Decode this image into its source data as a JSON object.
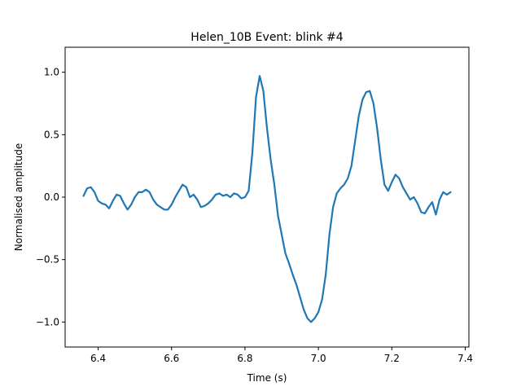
{
  "chart_data": {
    "type": "line",
    "title": "Helen_10B Event: blink #4",
    "xlabel": "Time (s)",
    "ylabel": "Normalised amplitude",
    "xlim": [
      6.31,
      7.41
    ],
    "ylim": [
      -1.2,
      1.2
    ],
    "grid": false,
    "x_ticks": [
      {
        "value": 6.4,
        "label": "6.4"
      },
      {
        "value": 6.6,
        "label": "6.6"
      },
      {
        "value": 6.8,
        "label": "6.8"
      },
      {
        "value": 7.0,
        "label": "7.0"
      },
      {
        "value": 7.2,
        "label": "7.2"
      },
      {
        "value": 7.4,
        "label": "7.4"
      }
    ],
    "y_ticks": [
      {
        "value": -1.0,
        "label": "−1.0"
      },
      {
        "value": -0.5,
        "label": "−0.5"
      },
      {
        "value": 0.0,
        "label": "0.0"
      },
      {
        "value": 0.5,
        "label": "0.5"
      },
      {
        "value": 1.0,
        "label": "1.0"
      }
    ],
    "series": [
      {
        "color": "#1f77b4",
        "x": [
          6.36,
          6.37,
          6.38,
          6.39,
          6.4,
          6.41,
          6.42,
          6.43,
          6.44,
          6.45,
          6.46,
          6.47,
          6.48,
          6.49,
          6.5,
          6.51,
          6.52,
          6.53,
          6.54,
          6.55,
          6.56,
          6.57,
          6.58,
          6.59,
          6.6,
          6.61,
          6.62,
          6.63,
          6.64,
          6.65,
          6.66,
          6.67,
          6.68,
          6.69,
          6.7,
          6.71,
          6.72,
          6.73,
          6.74,
          6.75,
          6.76,
          6.77,
          6.78,
          6.79,
          6.8,
          6.81,
          6.82,
          6.83,
          6.84,
          6.85,
          6.86,
          6.87,
          6.88,
          6.89,
          6.9,
          6.91,
          6.92,
          6.93,
          6.94,
          6.95,
          6.96,
          6.97,
          6.98,
          6.99,
          7.0,
          7.01,
          7.02,
          7.03,
          7.04,
          7.05,
          7.06,
          7.07,
          7.08,
          7.09,
          7.1,
          7.11,
          7.12,
          7.13,
          7.14,
          7.15,
          7.16,
          7.17,
          7.18,
          7.19,
          7.2,
          7.21,
          7.22,
          7.23,
          7.24,
          7.25,
          7.26,
          7.27,
          7.28,
          7.29,
          7.3,
          7.31,
          7.32,
          7.33,
          7.34,
          7.35,
          7.36
        ],
        "y": [
          0.01,
          0.07,
          0.08,
          0.04,
          -0.03,
          -0.05,
          -0.06,
          -0.09,
          -0.03,
          0.02,
          0.01,
          -0.05,
          -0.1,
          -0.06,
          0.0,
          0.04,
          0.04,
          0.06,
          0.04,
          -0.02,
          -0.06,
          -0.08,
          -0.1,
          -0.1,
          -0.06,
          0.0,
          0.05,
          0.1,
          0.08,
          0.0,
          0.02,
          -0.02,
          -0.08,
          -0.07,
          -0.05,
          -0.02,
          0.02,
          0.03,
          0.01,
          0.02,
          0.0,
          0.03,
          0.02,
          -0.01,
          0.0,
          0.05,
          0.35,
          0.8,
          0.97,
          0.85,
          0.55,
          0.3,
          0.1,
          -0.15,
          -0.3,
          -0.45,
          -0.53,
          -0.62,
          -0.7,
          -0.8,
          -0.9,
          -0.97,
          -1.0,
          -0.97,
          -0.92,
          -0.82,
          -0.62,
          -0.3,
          -0.08,
          0.03,
          0.07,
          0.1,
          0.15,
          0.25,
          0.45,
          0.65,
          0.78,
          0.84,
          0.85,
          0.75,
          0.55,
          0.3,
          0.1,
          0.05,
          0.12,
          0.18,
          0.15,
          0.08,
          0.03,
          -0.02,
          0.0,
          -0.05,
          -0.12,
          -0.13,
          -0.08,
          -0.04,
          -0.14,
          -0.02,
          0.04,
          0.02,
          0.04
        ]
      }
    ]
  }
}
